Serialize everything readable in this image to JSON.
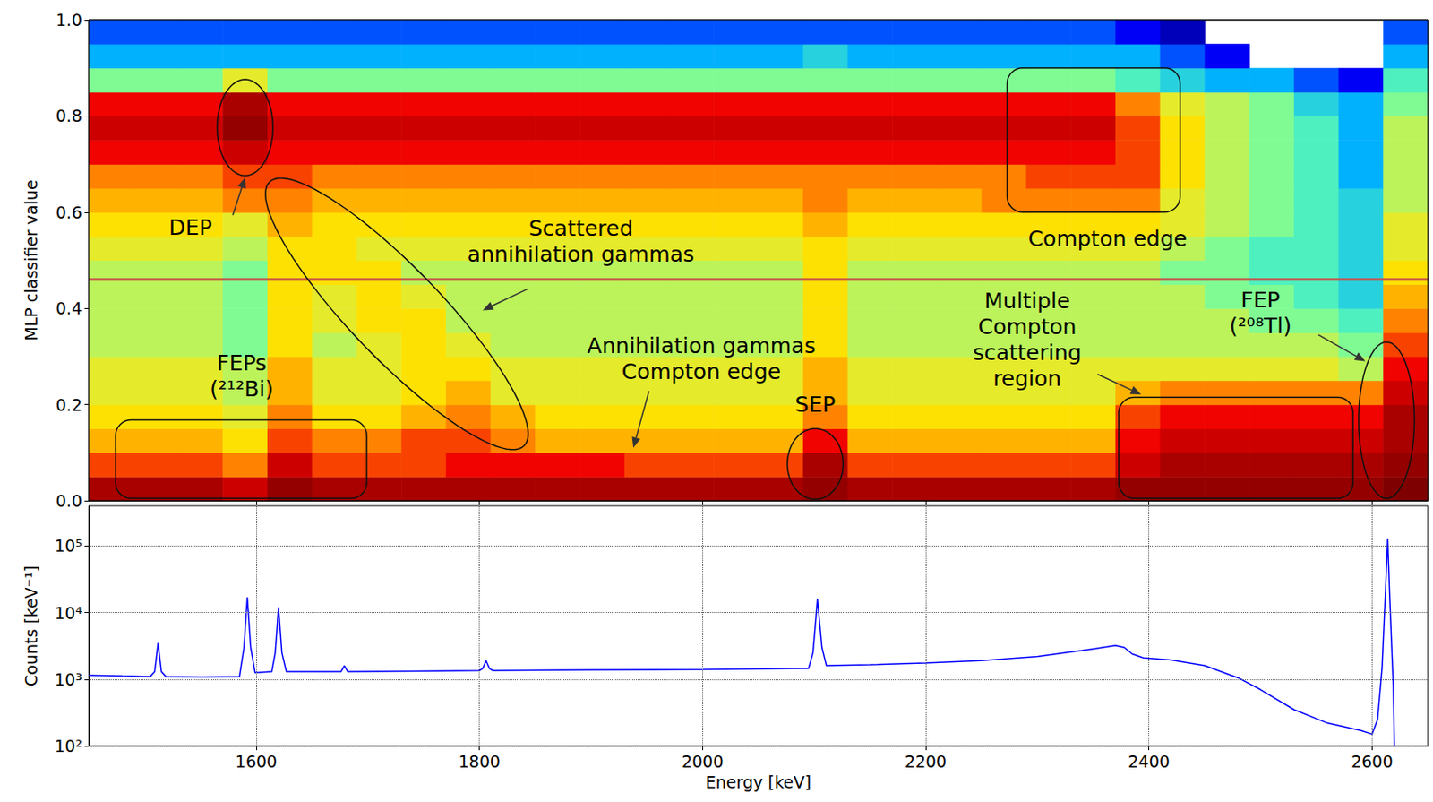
{
  "chart_data": [
    {
      "type": "heatmap",
      "ylabel": "MLP classifier value",
      "xlim": [
        1450,
        2650
      ],
      "ylim": [
        0,
        1
      ],
      "xticks": [
        1600,
        1800,
        2000,
        2200,
        2400,
        2600
      ],
      "yticks": [
        {
          "value": 0,
          "label": "0.0"
        },
        0.2,
        0.4,
        0.6,
        0.8,
        {
          "value": 1,
          "label": "1.0"
        }
      ],
      "tick_labels": "y",
      "grid": false,
      "x_bins": [
        1450,
        1490,
        1530,
        1570,
        1610,
        1650,
        1690,
        1730,
        1770,
        1810,
        1850,
        1890,
        1930,
        1970,
        2010,
        2050,
        2090,
        2130,
        2170,
        2210,
        2250,
        2290,
        2330,
        2370,
        2410,
        2450,
        2490,
        2530,
        2570,
        2610,
        2650
      ],
      "y_bins": [
        0,
        0.05,
        0.1,
        0.15,
        0.2,
        0.25,
        0.3,
        0.35,
        0.4,
        0.45,
        0.5,
        0.55,
        0.6,
        0.65,
        0.7,
        0.75,
        0.8,
        0.85,
        0.9,
        0.95,
        1
      ],
      "z_range": [
        1,
        10
      ],
      "z": [
        [
          9,
          9,
          9,
          8.5,
          9.5,
          9,
          9,
          9,
          9,
          9,
          9,
          9,
          9,
          9,
          9,
          9,
          9.5,
          9,
          9,
          9,
          9,
          9,
          9,
          9.5,
          9.5,
          9.5,
          9.5,
          9.5,
          9.5,
          10
        ],
        [
          7.5,
          7.5,
          7.5,
          7,
          8.5,
          7.5,
          7.5,
          7.5,
          8,
          8,
          8,
          8,
          7.5,
          7.5,
          7.5,
          7.5,
          9,
          7.5,
          7.5,
          7.5,
          7.5,
          7.5,
          7.5,
          8.5,
          9,
          9,
          9,
          9,
          9,
          9.5
        ],
        [
          6.5,
          6.5,
          6.5,
          6,
          7.5,
          7,
          7,
          7.5,
          7.5,
          7,
          6.5,
          6.5,
          6.5,
          6.5,
          6.5,
          6.5,
          8,
          6.5,
          6.5,
          6.5,
          6.5,
          6.5,
          6.5,
          8,
          8.5,
          8.5,
          8.5,
          8.5,
          8.5,
          9
        ],
        [
          6,
          6,
          6,
          5.5,
          7,
          6,
          6,
          6.5,
          7,
          6.5,
          6,
          6,
          6,
          6,
          6,
          6,
          7,
          6,
          6,
          6,
          6,
          6,
          6,
          7.5,
          8,
          8,
          8,
          8,
          8,
          9
        ],
        [
          5.5,
          5.5,
          5.5,
          5,
          6.5,
          5.5,
          5.5,
          6,
          6.5,
          5.5,
          5.5,
          5.5,
          5.5,
          5.5,
          5.5,
          5.5,
          6.5,
          5.5,
          5.5,
          5.5,
          5.5,
          5.5,
          5.5,
          6.5,
          7,
          7,
          7,
          7,
          7,
          8.5
        ],
        [
          5.5,
          5.5,
          5.5,
          5,
          6.5,
          5.5,
          5.5,
          6,
          6,
          5.5,
          5.5,
          5.5,
          5.5,
          5.5,
          5.5,
          5.5,
          6.5,
          5.5,
          5.5,
          5.5,
          5.5,
          5.5,
          5.5,
          5.5,
          5.5,
          5.5,
          5.5,
          5.5,
          5,
          8
        ],
        [
          5,
          5,
          5,
          4.5,
          6,
          5,
          5.5,
          6,
          5.5,
          5,
          5,
          5,
          5,
          5,
          5,
          5,
          6,
          5,
          5,
          5,
          5,
          5,
          5,
          5,
          5,
          5,
          5,
          5,
          4.5,
          7.5
        ],
        [
          5,
          5,
          5,
          4.5,
          6,
          5.5,
          6,
          6,
          5,
          5,
          5,
          5,
          5,
          5,
          5,
          5,
          6,
          5,
          5,
          5,
          5,
          5,
          5,
          5,
          5,
          5,
          4.5,
          4.5,
          4,
          7
        ],
        [
          5,
          5,
          5,
          4.5,
          6,
          5.5,
          6,
          5.5,
          5,
          5,
          5,
          5,
          5,
          5,
          5,
          5,
          6,
          5,
          5,
          5,
          5,
          5,
          5,
          5,
          5,
          4.5,
          4.5,
          4,
          3.5,
          6.5
        ],
        [
          5,
          5,
          5,
          4.5,
          6,
          6,
          6,
          5,
          5,
          5,
          5,
          5,
          5,
          5,
          5,
          5,
          6,
          5,
          5,
          5,
          5,
          5,
          5,
          5,
          4.5,
          4.5,
          4,
          4,
          3.5,
          6
        ],
        [
          5.5,
          5.5,
          5.5,
          5,
          6,
          6,
          5.5,
          5.5,
          5.5,
          5.5,
          5.5,
          5.5,
          5.5,
          5.5,
          5.5,
          5.5,
          6,
          5.5,
          5.5,
          5.5,
          5.5,
          5.5,
          5.5,
          5.5,
          5,
          4.5,
          4,
          4,
          3.5,
          5.5
        ],
        [
          6,
          6,
          6,
          5.5,
          6.5,
          6,
          6,
          6,
          6,
          6,
          6,
          6,
          6,
          6,
          6,
          6,
          6.5,
          6,
          6,
          6,
          6,
          6,
          6,
          6,
          5.5,
          5,
          4.5,
          4,
          3.5,
          5.5
        ],
        [
          6.5,
          6.5,
          6.5,
          7,
          7,
          6.5,
          6.5,
          6.5,
          6.5,
          6.5,
          6.5,
          6.5,
          6.5,
          6.5,
          6.5,
          6.5,
          7,
          6.5,
          6.5,
          6.5,
          7,
          7,
          7,
          7,
          5.5,
          5,
          4.5,
          4,
          3.5,
          5
        ],
        [
          7,
          7,
          7,
          7.5,
          7.5,
          7,
          7,
          7,
          7,
          7,
          7,
          7,
          7,
          7,
          7,
          7,
          7,
          7,
          7,
          7,
          7,
          7.5,
          7.5,
          7.5,
          6,
          5,
          4.5,
          4,
          3,
          5
        ],
        [
          8,
          8,
          8,
          8.5,
          8,
          8,
          8,
          8,
          8,
          8,
          8,
          8,
          8,
          8,
          8,
          8,
          8,
          8,
          8,
          8,
          8,
          8,
          8,
          7.5,
          6,
          5,
          4.5,
          4,
          3,
          5
        ],
        [
          8.5,
          8.5,
          8.5,
          9.5,
          8.5,
          8.5,
          8.5,
          8.5,
          8.5,
          8.5,
          8.5,
          8.5,
          8.5,
          8.5,
          8.5,
          8.5,
          8.5,
          8.5,
          8.5,
          8.5,
          8.5,
          8.5,
          8.5,
          7.5,
          6,
          5,
          4.5,
          4,
          3,
          5
        ],
        [
          8,
          8,
          8,
          9,
          8,
          8,
          8,
          8,
          8,
          8,
          8,
          8,
          8,
          8,
          8,
          8,
          8,
          8,
          8,
          8,
          8,
          8,
          8,
          7,
          5.5,
          5,
          4.5,
          3.5,
          3,
          4.5
        ],
        [
          4.5,
          4.5,
          4.5,
          5.5,
          4.5,
          4.5,
          4.5,
          4.5,
          4.5,
          4.5,
          4.5,
          4.5,
          4.5,
          4.5,
          4.5,
          4.5,
          4.5,
          4.5,
          4.5,
          4.5,
          4.5,
          4.5,
          4.5,
          4,
          3.5,
          3,
          3,
          2.5,
          2,
          4
        ],
        [
          3,
          3,
          3,
          3,
          3,
          3,
          3,
          3,
          3,
          3,
          3,
          3,
          3,
          3,
          3,
          3,
          3.5,
          3,
          3,
          3,
          3,
          3,
          3,
          3,
          2.5,
          2,
          null,
          null,
          null,
          3
        ],
        [
          2.5,
          2.5,
          2.5,
          2.5,
          2.5,
          2.5,
          2.5,
          2.5,
          2.5,
          2.5,
          2.5,
          2.5,
          2.5,
          2.5,
          2.5,
          2.5,
          2.5,
          2.5,
          2.5,
          2.5,
          2.5,
          2.5,
          2.5,
          2,
          1.5,
          null,
          null,
          null,
          null,
          2.5
        ]
      ],
      "lines": [
        {
          "y": 0.46,
          "color": "#c8504a"
        }
      ],
      "annotations": [
        {
          "text": "DEP",
          "x": 1541,
          "y": 0.568,
          "region": {
            "shape": "ellipse",
            "from": [
              1590,
              0.876
            ],
            "to": [
              1590,
              0.676
            ],
            "side": [
              1565,
              0.776
            ]
          },
          "arrow": {
            "from": [
              1579,
              0.594
            ],
            "to": [
              1590,
              0.672
            ]
          }
        },
        {
          "text": "Scattered\nannihilation gammas",
          "x": 1891,
          "y": 0.54,
          "region": {
            "shape": "ellipse",
            "from": [
              1612,
              0.663
            ],
            "to": [
              1840,
              0.114
            ],
            "side": [
              1755,
              0.455
            ]
          },
          "arrow": {
            "from": [
              1843,
              0.44
            ],
            "to": [
              1803,
              0.396
            ]
          }
        },
        {
          "text": "Compton edge",
          "x": 2363,
          "y": 0.545,
          "region": {
            "shape": "rect",
            "x": [
              2273,
              2428
            ],
            "y": [
              0.6,
              0.9
            ]
          }
        },
        {
          "text": "Annihilation gammas\nCompton edge",
          "x": 1999,
          "y": 0.295,
          "arrow": {
            "from": [
              1952,
              0.228
            ],
            "to": [
              1938,
              0.11
            ]
          }
        },
        {
          "text": "FEPs\n(²¹²Bi)",
          "x": 1587,
          "y": 0.259,
          "region": {
            "shape": "rect",
            "x": [
              1474,
              1699
            ],
            "y": [
              0.005,
              0.168
            ]
          }
        },
        {
          "text": "SEP",
          "x": 2101,
          "y": 0.2,
          "region": {
            "shape": "ellipse",
            "from": [
              2101,
              0.15
            ],
            "to": [
              2101,
              0.003
            ],
            "side": [
              2076,
              0.076
            ]
          }
        },
        {
          "text": "Multiple\nCompton\nscattering\nregion",
          "x": 2291,
          "y": 0.335,
          "region": {
            "shape": "rect",
            "x": [
              2373,
              2583
            ],
            "y": [
              0.005,
              0.215
            ]
          },
          "arrow": {
            "from": [
              2354,
              0.263
            ],
            "to": [
              2393,
              0.221
            ]
          }
        },
        {
          "text": "FEP\n(²⁰⁸Tl)",
          "x": 2500,
          "y": 0.39,
          "region": {
            "shape": "ellipse",
            "from": [
              2613,
              0.33
            ],
            "to": [
              2613,
              0.005
            ],
            "side": [
              2588,
              0.168
            ]
          },
          "arrow": {
            "from": [
              2552,
              0.345
            ],
            "to": [
              2594,
              0.29
            ]
          }
        }
      ]
    },
    {
      "type": "line",
      "xlabel": "Energy [keV]",
      "ylabel": "Counts [keV⁻¹]",
      "log": "y",
      "grid": true,
      "xlim": [
        1450,
        2650
      ],
      "ylim": [
        100,
        400000
      ],
      "xticks": [
        1600,
        1800,
        2000,
        2200,
        2400,
        2600
      ],
      "yticks": [
        {
          "value": 100,
          "label": "10²"
        },
        {
          "value": 1000,
          "label": "10³"
        },
        {
          "value": 10000,
          "label": "10⁴"
        },
        {
          "value": 100000,
          "label": "10⁵"
        }
      ],
      "color": "#0000ff",
      "x": [
        1450,
        1480,
        1505,
        1509,
        1512,
        1515,
        1519,
        1550,
        1585,
        1589,
        1592,
        1595,
        1599,
        1614,
        1617,
        1620,
        1623,
        1627,
        1660,
        1676,
        1679,
        1682,
        1740,
        1800,
        1803,
        1806,
        1809,
        1812,
        1900,
        2000,
        2095,
        2099,
        2103,
        2107,
        2111,
        2150,
        2200,
        2250,
        2300,
        2340,
        2370,
        2378,
        2385,
        2395,
        2420,
        2450,
        2480,
        2500,
        2530,
        2560,
        2590,
        2600,
        2605,
        2609,
        2612,
        2614,
        2616,
        2619,
        2620
      ],
      "values": [
        1150,
        1120,
        1100,
        1300,
        3500,
        1300,
        1100,
        1080,
        1100,
        3000,
        17000,
        3000,
        1250,
        1300,
        2500,
        12000,
        2500,
        1300,
        1300,
        1300,
        1600,
        1300,
        1320,
        1350,
        1450,
        1900,
        1450,
        1350,
        1380,
        1400,
        1450,
        2500,
        16000,
        3000,
        1600,
        1650,
        1750,
        1900,
        2200,
        2700,
        3200,
        3000,
        2400,
        2100,
        1950,
        1600,
        1050,
        700,
        350,
        220,
        170,
        150,
        250,
        1500,
        20000,
        130000,
        15000,
        800,
        100
      ]
    }
  ]
}
